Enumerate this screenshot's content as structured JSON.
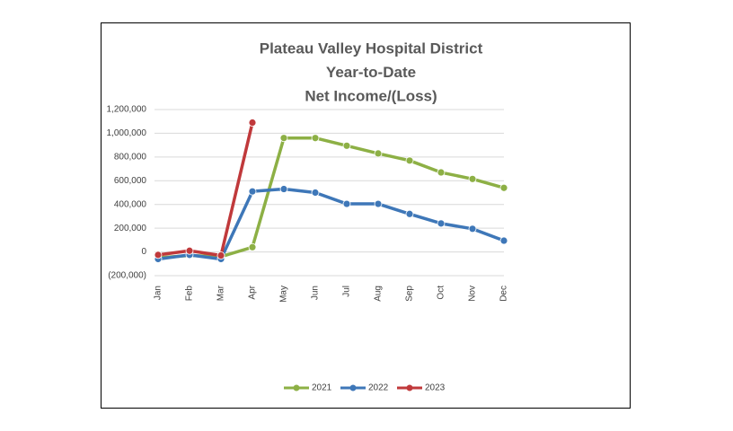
{
  "chart_data": {
    "type": "line",
    "title": [
      "Plateau Valley Hospital District",
      "Year-to-Date",
      "Net Income/(Loss)"
    ],
    "categories": [
      "Jan",
      "Feb",
      "Mar",
      "Apr",
      "May",
      "Jun",
      "Jul",
      "Aug",
      "Sep",
      "Oct",
      "Nov",
      "Dec"
    ],
    "series": [
      {
        "name": "2021",
        "color": "#8db045",
        "values": [
          -50000,
          -30000,
          -40000,
          40000,
          960000,
          960000,
          895000,
          830000,
          770000,
          670000,
          615000,
          540000
        ]
      },
      {
        "name": "2022",
        "color": "#3e77b8",
        "values": [
          -60000,
          -25000,
          -60000,
          510000,
          530000,
          500000,
          405000,
          405000,
          320000,
          240000,
          195000,
          95000
        ]
      },
      {
        "name": "2023",
        "color": "#c0393b",
        "values": [
          -25000,
          10000,
          -30000,
          1090000,
          null,
          null,
          null,
          null,
          null,
          null,
          null,
          null
        ]
      }
    ],
    "ylim": [
      -200000,
      1200000
    ],
    "yticks": [
      {
        "value": -200000,
        "label": "(200,000)"
      },
      0,
      {
        "value": 200000,
        "label": "200,000"
      },
      {
        "value": 400000,
        "label": "400,000"
      },
      {
        "value": 600000,
        "label": "600,000"
      },
      {
        "value": 800000,
        "label": "800,000"
      },
      {
        "value": 1000000,
        "label": "1,000,000"
      },
      {
        "value": 1200000,
        "label": "1,200,000"
      }
    ],
    "grid": true,
    "legend": "bottom"
  }
}
